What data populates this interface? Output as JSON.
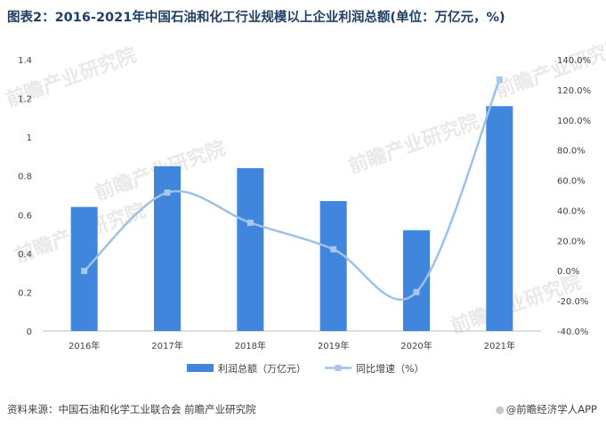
{
  "title": "图表2：2016-2021年中国石油和化工行业规模以上企业利润总额(单位：万亿元，%)",
  "footer": {
    "source": "资料来源：中国石油和化学工业联合会 前瞻产业研究院",
    "credit": "@前瞻经济学人APP"
  },
  "watermark": "前瞻产业研究院",
  "colors": {
    "bar": "#3f86dc",
    "line": "#9ec1ea",
    "marker": "#a9c7ee",
    "axis": "#bfbfbf"
  },
  "chart_data": {
    "type": "bar",
    "categories": [
      "2016年",
      "2017年",
      "2018年",
      "2019年",
      "2020年",
      "2021年"
    ],
    "series": [
      {
        "name": "利润总额（万亿元）",
        "type": "bar",
        "axis": "left",
        "values": [
          0.64,
          0.85,
          0.84,
          0.67,
          0.52,
          1.16
        ]
      },
      {
        "name": "同比增速（%）",
        "type": "line",
        "axis": "right",
        "smooth": true,
        "values": [
          -0.2,
          51.8,
          31.8,
          14.2,
          -14.2,
          126.8
        ]
      }
    ],
    "y_left": {
      "min": 0,
      "max": 1.4,
      "ticks": [
        "0",
        "0.2",
        "0.4",
        "0.6",
        "0.8",
        "1",
        "1.2",
        "1.4"
      ]
    },
    "y_right": {
      "min": -40,
      "max": 140,
      "ticks": [
        "-40.0%",
        "-20.0%",
        "0.0%",
        "20.0%",
        "40.0%",
        "60.0%",
        "80.0%",
        "100.0%",
        "120.0%",
        "140.0%"
      ]
    },
    "legend_position": "bottom"
  }
}
